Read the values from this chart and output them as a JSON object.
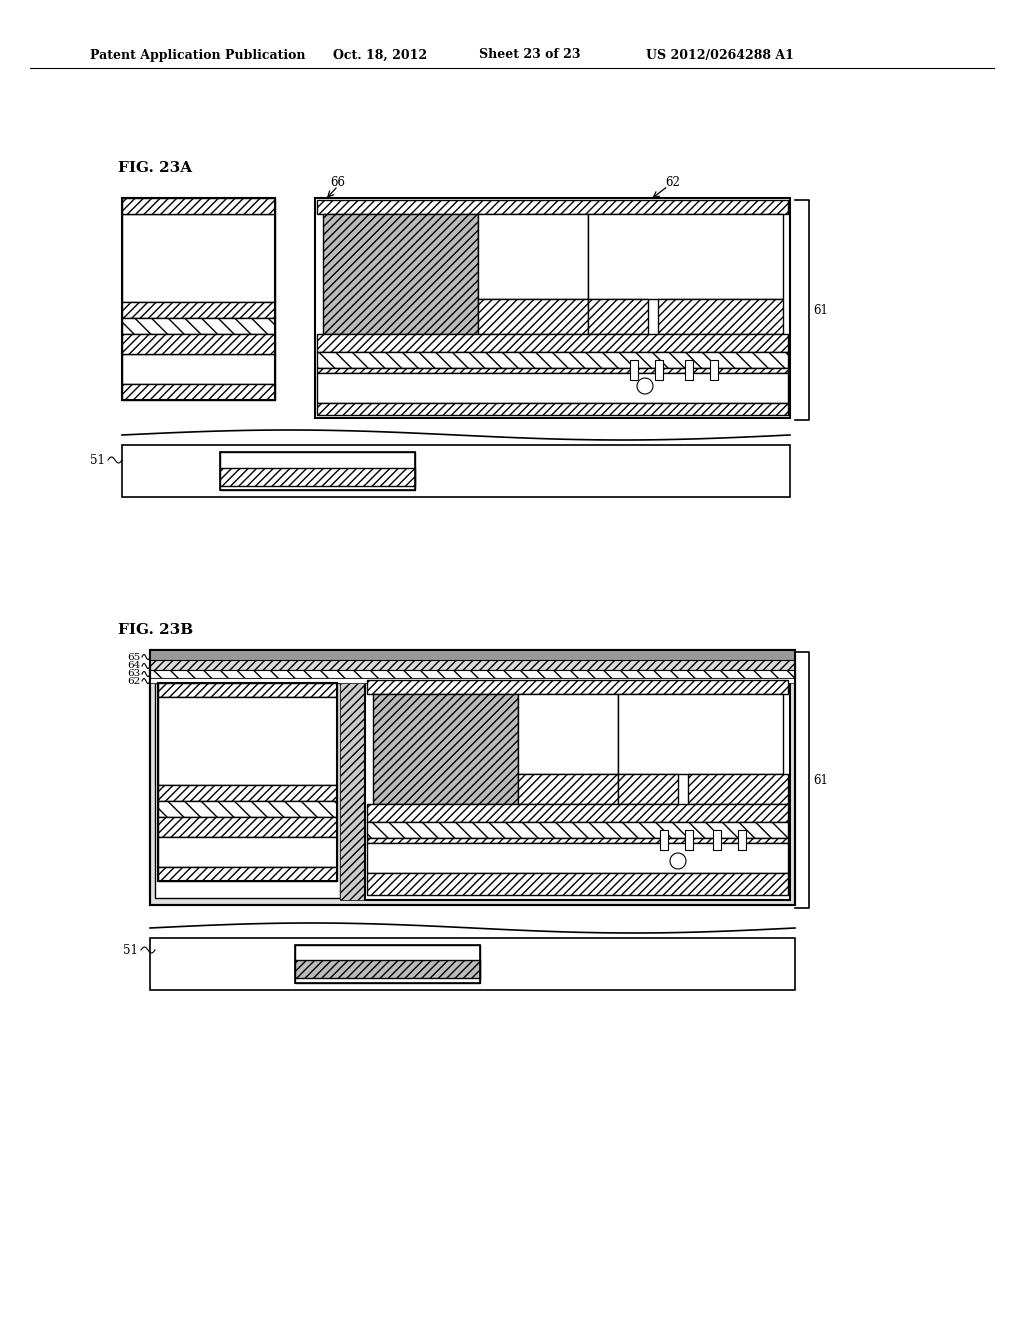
{
  "bg_color": "#ffffff",
  "header_text": "Patent Application Publication",
  "header_date": "Oct. 18, 2012",
  "header_sheet": "Sheet 23 of 23",
  "header_patent": "US 2012/0264288 A1",
  "fig_a_label": "FIG. 23A",
  "fig_b_label": "FIG. 23B",
  "label_color": "#000000",
  "hatch_color": "#000000",
  "line_width": 1.2
}
